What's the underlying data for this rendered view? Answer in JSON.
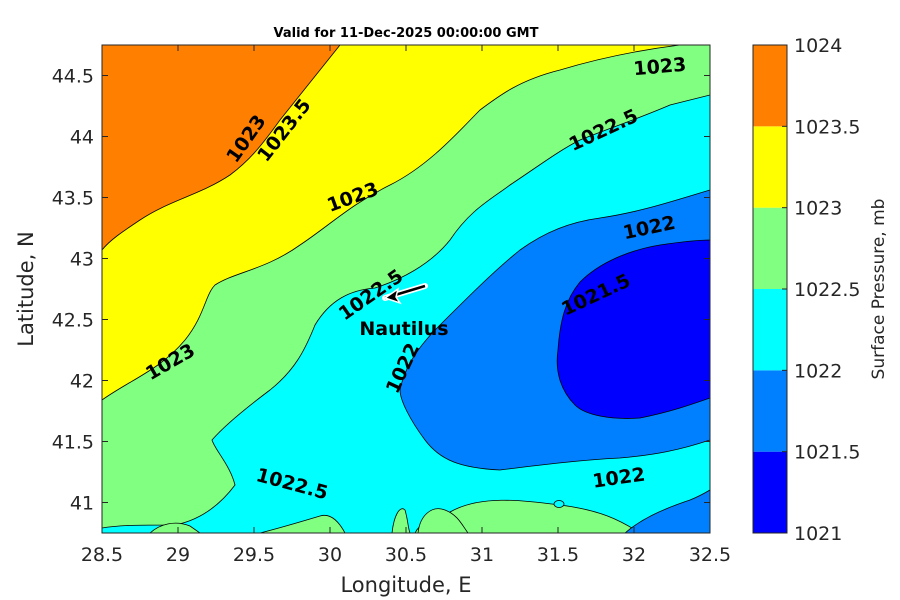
{
  "title": "Valid for 11-Dec-2025 00:00:00 GMT",
  "axes": {
    "xlabel": "Longitude, E",
    "ylabel": "Latitude, N",
    "xticks": [
      "28.5",
      "29",
      "29.5",
      "30",
      "30.5",
      "31",
      "31.5",
      "32",
      "32.5"
    ],
    "yticks": [
      "41",
      "41.5",
      "42",
      "42.5",
      "43",
      "43.5",
      "44",
      "44.5"
    ],
    "xlim": [
      28.5,
      32.5
    ],
    "ylim": [
      40.75,
      44.75
    ]
  },
  "colorbar": {
    "label": "Surface Pressure, mb",
    "ticks": [
      "1021",
      "1021.5",
      "1022",
      "1022.5",
      "1023",
      "1023.5",
      "1024"
    ],
    "levels": [
      {
        "range": "1021-1021.5",
        "color": "#0000ff"
      },
      {
        "range": "1021.5-1022",
        "color": "#0080ff"
      },
      {
        "range": "1022-1022.5",
        "color": "#00ffff"
      },
      {
        "range": "1022.5-1023",
        "color": "#80ff80"
      },
      {
        "range": "1023-1023.5",
        "color": "#ffff00"
      },
      {
        "range": "1023.5-1024",
        "color": "#ff8000"
      }
    ]
  },
  "contour_labels": [
    {
      "text": "1023",
      "lon": 29.45,
      "lat": 43.98,
      "angle": -55
    },
    {
      "text": "1023.5",
      "lon": 29.7,
      "lat": 44.05,
      "angle": -52
    },
    {
      "text": "1023",
      "lon": 30.15,
      "lat": 43.5,
      "angle": -20
    },
    {
      "text": "1022.5",
      "lon": 31.8,
      "lat": 44.05,
      "angle": -25
    },
    {
      "text": "1023",
      "lon": 32.17,
      "lat": 44.57,
      "angle": -5
    },
    {
      "text": "1022",
      "lon": 32.1,
      "lat": 43.25,
      "angle": -12
    },
    {
      "text": "1022.5",
      "lon": 30.27,
      "lat": 42.7,
      "angle": -35
    },
    {
      "text": "1021.5",
      "lon": 31.75,
      "lat": 42.7,
      "angle": -25
    },
    {
      "text": "1023",
      "lon": 28.95,
      "lat": 42.15,
      "angle": -30
    },
    {
      "text": "1022",
      "lon": 30.48,
      "lat": 42.1,
      "angle": -65
    },
    {
      "text": "1022",
      "lon": 31.9,
      "lat": 41.2,
      "angle": -8
    },
    {
      "text": "1022.5",
      "lon": 29.75,
      "lat": 41.15,
      "angle": 15
    }
  ],
  "marker": {
    "name": "Nautilus",
    "lon": 30.5,
    "lat": 42.7
  }
}
